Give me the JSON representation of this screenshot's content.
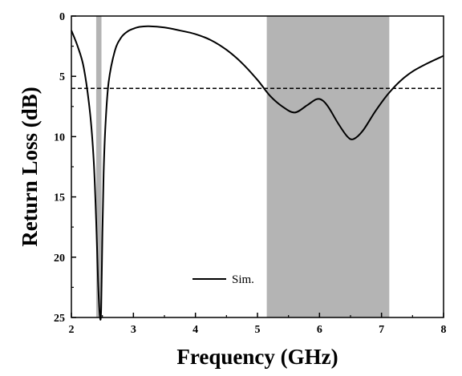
{
  "chart_data": {
    "type": "line",
    "xlabel": "Frequency (GHz)",
    "ylabel": "Return Loss (dB)",
    "xlim": [
      2,
      8
    ],
    "ylim": [
      0,
      25
    ],
    "y_inverted": true,
    "x_ticks": [
      "2",
      "3",
      "4",
      "5",
      "6",
      "7",
      "8"
    ],
    "y_ticks": [
      "0",
      "5",
      "10",
      "15",
      "20",
      "25"
    ],
    "x_tick_values": [
      2,
      3,
      4,
      5,
      6,
      7,
      8
    ],
    "y_tick_values": [
      0,
      5,
      10,
      15,
      20,
      25
    ],
    "grid": false,
    "legend_position": "bottom-center",
    "threshold_line": {
      "y": 6,
      "style": "dashed",
      "color": "#000000"
    },
    "shaded_bands": [
      {
        "x0": 2.4,
        "x1": 2.485,
        "color": "#b4b4b4"
      },
      {
        "x0": 5.15,
        "x1": 7.125,
        "color": "#b4b4b4"
      }
    ],
    "series": [
      {
        "name": "Sim.",
        "color": "#000000",
        "x": [
          2.0,
          2.1,
          2.2,
          2.3,
          2.36,
          2.4,
          2.43,
          2.46,
          2.48,
          2.5,
          2.52,
          2.55,
          2.6,
          2.7,
          2.8,
          2.9,
          3.0,
          3.1,
          3.25,
          3.5,
          3.75,
          4.0,
          4.25,
          4.5,
          4.75,
          5.0,
          5.2,
          5.4,
          5.6,
          5.8,
          5.95,
          6.05,
          6.15,
          6.3,
          6.45,
          6.55,
          6.7,
          6.9,
          7.1,
          7.3,
          7.5,
          7.75,
          8.0
        ],
        "y": [
          1.2,
          2.5,
          4.3,
          8.0,
          12.0,
          17.0,
          22.0,
          24.9,
          24.3,
          18.0,
          13.0,
          9.0,
          5.5,
          2.9,
          1.8,
          1.3,
          1.05,
          0.9,
          0.85,
          0.95,
          1.2,
          1.5,
          2.0,
          2.8,
          3.9,
          5.3,
          6.6,
          7.5,
          8.0,
          7.4,
          6.9,
          7.0,
          7.6,
          8.9,
          10.0,
          10.2,
          9.5,
          7.9,
          6.5,
          5.4,
          4.6,
          3.9,
          3.3
        ]
      }
    ]
  }
}
